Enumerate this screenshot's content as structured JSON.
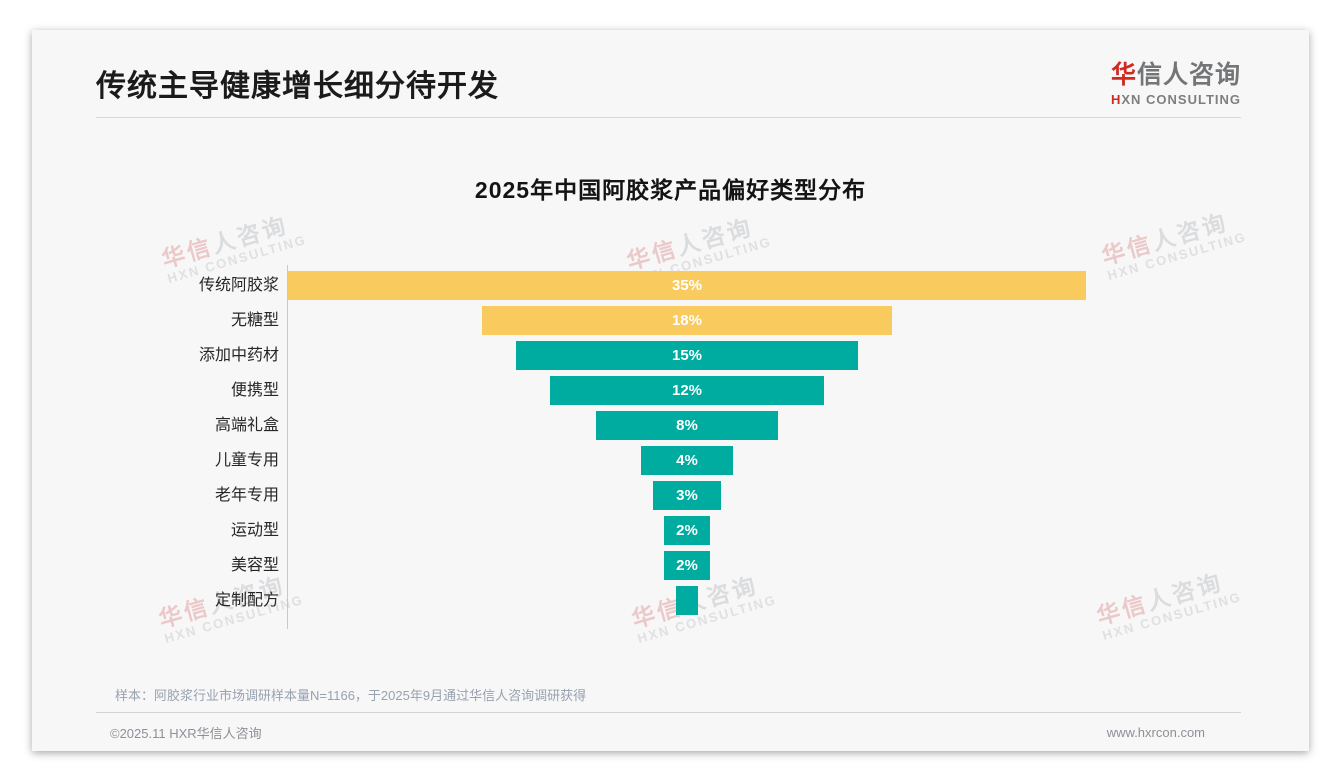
{
  "slide": {
    "title": "传统主导健康增长细分待开发",
    "logo": {
      "cn_accent": "华",
      "cn_rest": "信人咨询",
      "en_accent": "H",
      "en_rest": "XN CONSULTING"
    },
    "footnote": "样本：阿胶浆行业市场调研样本量N=1166，于2025年9月通过华信人咨询调研获得",
    "footer": {
      "left": "©2025.11 HXR华信人咨询",
      "right": "www.hxrcon.com"
    }
  },
  "watermark": {
    "line1_accent": "华信",
    "line1_rest": "人咨询",
    "line2": "HXN CONSULTING"
  },
  "chart_data": {
    "type": "bar",
    "subtype": "centered-funnel",
    "orientation": "horizontal",
    "title": "2025年中国阿胶浆产品偏好类型分布",
    "categories": [
      "传统阿胶浆",
      "无糖型",
      "添加中药材",
      "便携型",
      "高端礼盒",
      "儿童专用",
      "老年专用",
      "运动型",
      "美容型",
      "定制配方"
    ],
    "values": [
      35,
      18,
      15,
      12,
      8,
      4,
      3,
      2,
      2,
      1
    ],
    "value_labels": [
      "35%",
      "18%",
      "15%",
      "12%",
      "8%",
      "4%",
      "3%",
      "2%",
      "2%",
      ""
    ],
    "bar_colors": [
      "#f9cb5e",
      "#f9cb5e",
      "#00aca0",
      "#00aca0",
      "#00aca0",
      "#00aca0",
      "#00aca0",
      "#00aca0",
      "#00aca0",
      "#00aca0"
    ],
    "xmax": 35,
    "value_label_color": "#ffffff",
    "axis_line_color": "#c9c9c9",
    "grid": false,
    "legend": false
  }
}
